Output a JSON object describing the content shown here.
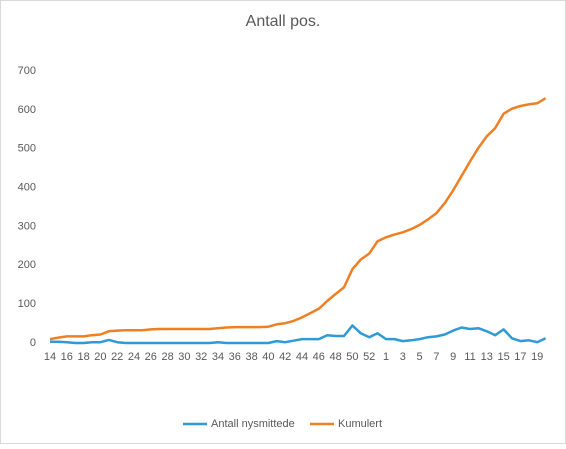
{
  "chart_data": {
    "type": "line",
    "title": "Antall pos.",
    "categories": [
      "14",
      null,
      "16",
      null,
      "18",
      null,
      "20",
      null,
      "22",
      null,
      "24",
      null,
      "26",
      null,
      "28",
      null,
      "30",
      null,
      "32",
      null,
      "34",
      null,
      "36",
      null,
      "38",
      null,
      "40",
      null,
      "42",
      null,
      "44",
      null,
      "46",
      null,
      "48",
      null,
      "50",
      null,
      "52",
      null,
      "1",
      null,
      "3",
      null,
      "5",
      null,
      "7",
      null,
      "9",
      null,
      "11",
      null,
      "13",
      null,
      "15",
      null,
      "17",
      null,
      "19",
      null
    ],
    "series": [
      {
        "name": "Antall nysmittede",
        "color": "#2e9bd6",
        "values": [
          3,
          3,
          2,
          0,
          0,
          2,
          2,
          8,
          2,
          0,
          0,
          0,
          0,
          0,
          0,
          0,
          0,
          0,
          0,
          0,
          2,
          0,
          0,
          0,
          0,
          0,
          0,
          5,
          2,
          6,
          10,
          10,
          10,
          20,
          18,
          18,
          45,
          25,
          15,
          25,
          10,
          10,
          5,
          7,
          10,
          15,
          17,
          22,
          32,
          40,
          36,
          38,
          30,
          20,
          35,
          12,
          5,
          7,
          2,
          12
        ]
      },
      {
        "name": "Kumulert",
        "color": "#f07f22",
        "values": [
          10,
          14,
          17,
          17,
          17,
          20,
          22,
          30,
          32,
          33,
          33,
          33,
          35,
          36,
          36,
          36,
          36,
          36,
          36,
          36,
          38,
          40,
          41,
          41,
          41,
          41,
          42,
          48,
          51,
          57,
          66,
          77,
          88,
          108,
          126,
          143,
          190,
          215,
          230,
          262,
          272,
          279,
          285,
          293,
          304,
          318,
          334,
          360,
          393,
          430,
          467,
          502,
          532,
          553,
          590,
          603,
          610,
          614,
          617,
          630
        ]
      }
    ],
    "ylim": [
      0,
      700
    ],
    "yticks": [
      0,
      100,
      200,
      300,
      400,
      500,
      600,
      700
    ],
    "legend": "bottom"
  }
}
